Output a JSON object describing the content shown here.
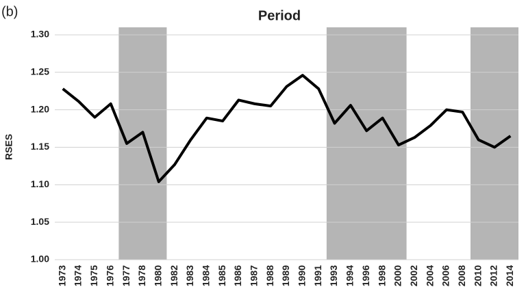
{
  "panel_label": "(b)",
  "chart_data": {
    "type": "line",
    "title": "Period",
    "y_label": "RSES",
    "categories": [
      "1973",
      "1974",
      "1975",
      "1976",
      "1977",
      "1978",
      "1980",
      "1982",
      "1983",
      "1984",
      "1985",
      "1986",
      "1987",
      "1988",
      "1989",
      "1990",
      "1991",
      "1993",
      "1994",
      "1996",
      "1998",
      "2000",
      "2002",
      "2004",
      "2006",
      "2008",
      "2010",
      "2012",
      "2014"
    ],
    "values": [
      1.228,
      1.211,
      1.19,
      1.208,
      1.155,
      1.17,
      1.104,
      1.127,
      1.16,
      1.189,
      1.185,
      1.213,
      1.208,
      1.205,
      1.231,
      1.246,
      1.228,
      1.182,
      1.206,
      1.172,
      1.189,
      1.153,
      1.163,
      1.179,
      1.2,
      1.197,
      1.16,
      1.15,
      1.165
    ],
    "color": "#000000",
    "shaded": [
      [
        "1977",
        "1980"
      ],
      [
        "1993",
        "2000"
      ],
      [
        "2010",
        "2014"
      ]
    ],
    "shade_color": "#b5b5b5",
    "ylim": [
      1.0,
      1.31
    ],
    "yticks": [
      {
        "value": 1.0,
        "label": "1.00"
      },
      {
        "value": 1.05,
        "label": "1.05"
      },
      {
        "value": 1.1,
        "label": "1.10"
      },
      {
        "value": 1.15,
        "label": "1.15"
      },
      {
        "value": 1.2,
        "label": "1.20"
      },
      {
        "value": 1.25,
        "label": "1.25"
      },
      {
        "value": 1.3,
        "label": "1.30"
      }
    ],
    "grid": true
  }
}
